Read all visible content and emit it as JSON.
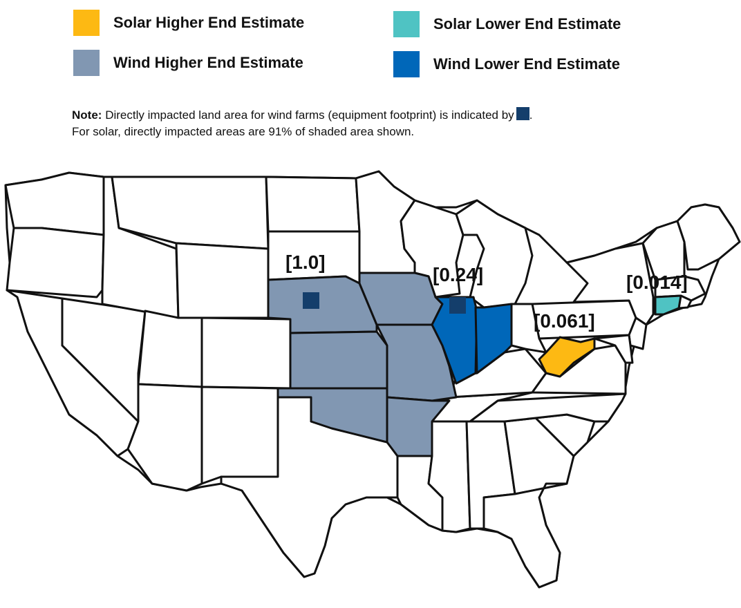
{
  "legend": [
    {
      "label": "Solar Higher End Estimate",
      "color": "#FDB913"
    },
    {
      "label": "Solar Lower End Estimate",
      "color": "#4FC3C3"
    },
    {
      "label": "Wind Higher End Estimate",
      "color": "#8197B2"
    },
    {
      "label": "Wind Lower End Estimate",
      "color": "#0067B9"
    }
  ],
  "note": {
    "heading": "Note:",
    "line1": "Directly impacted land area for wind farms (equipment footprint) is indicated by",
    "line1_end": ".",
    "line2": "For solar, directly impacted areas are 91% of shaded area shown.",
    "footprint_color": "#143E6B"
  },
  "map": {
    "labels": [
      {
        "text": "[1.0]"
      },
      {
        "text": "[0.24]"
      },
      {
        "text": "[0.061]"
      },
      {
        "text": "[0.014]"
      }
    ]
  }
}
